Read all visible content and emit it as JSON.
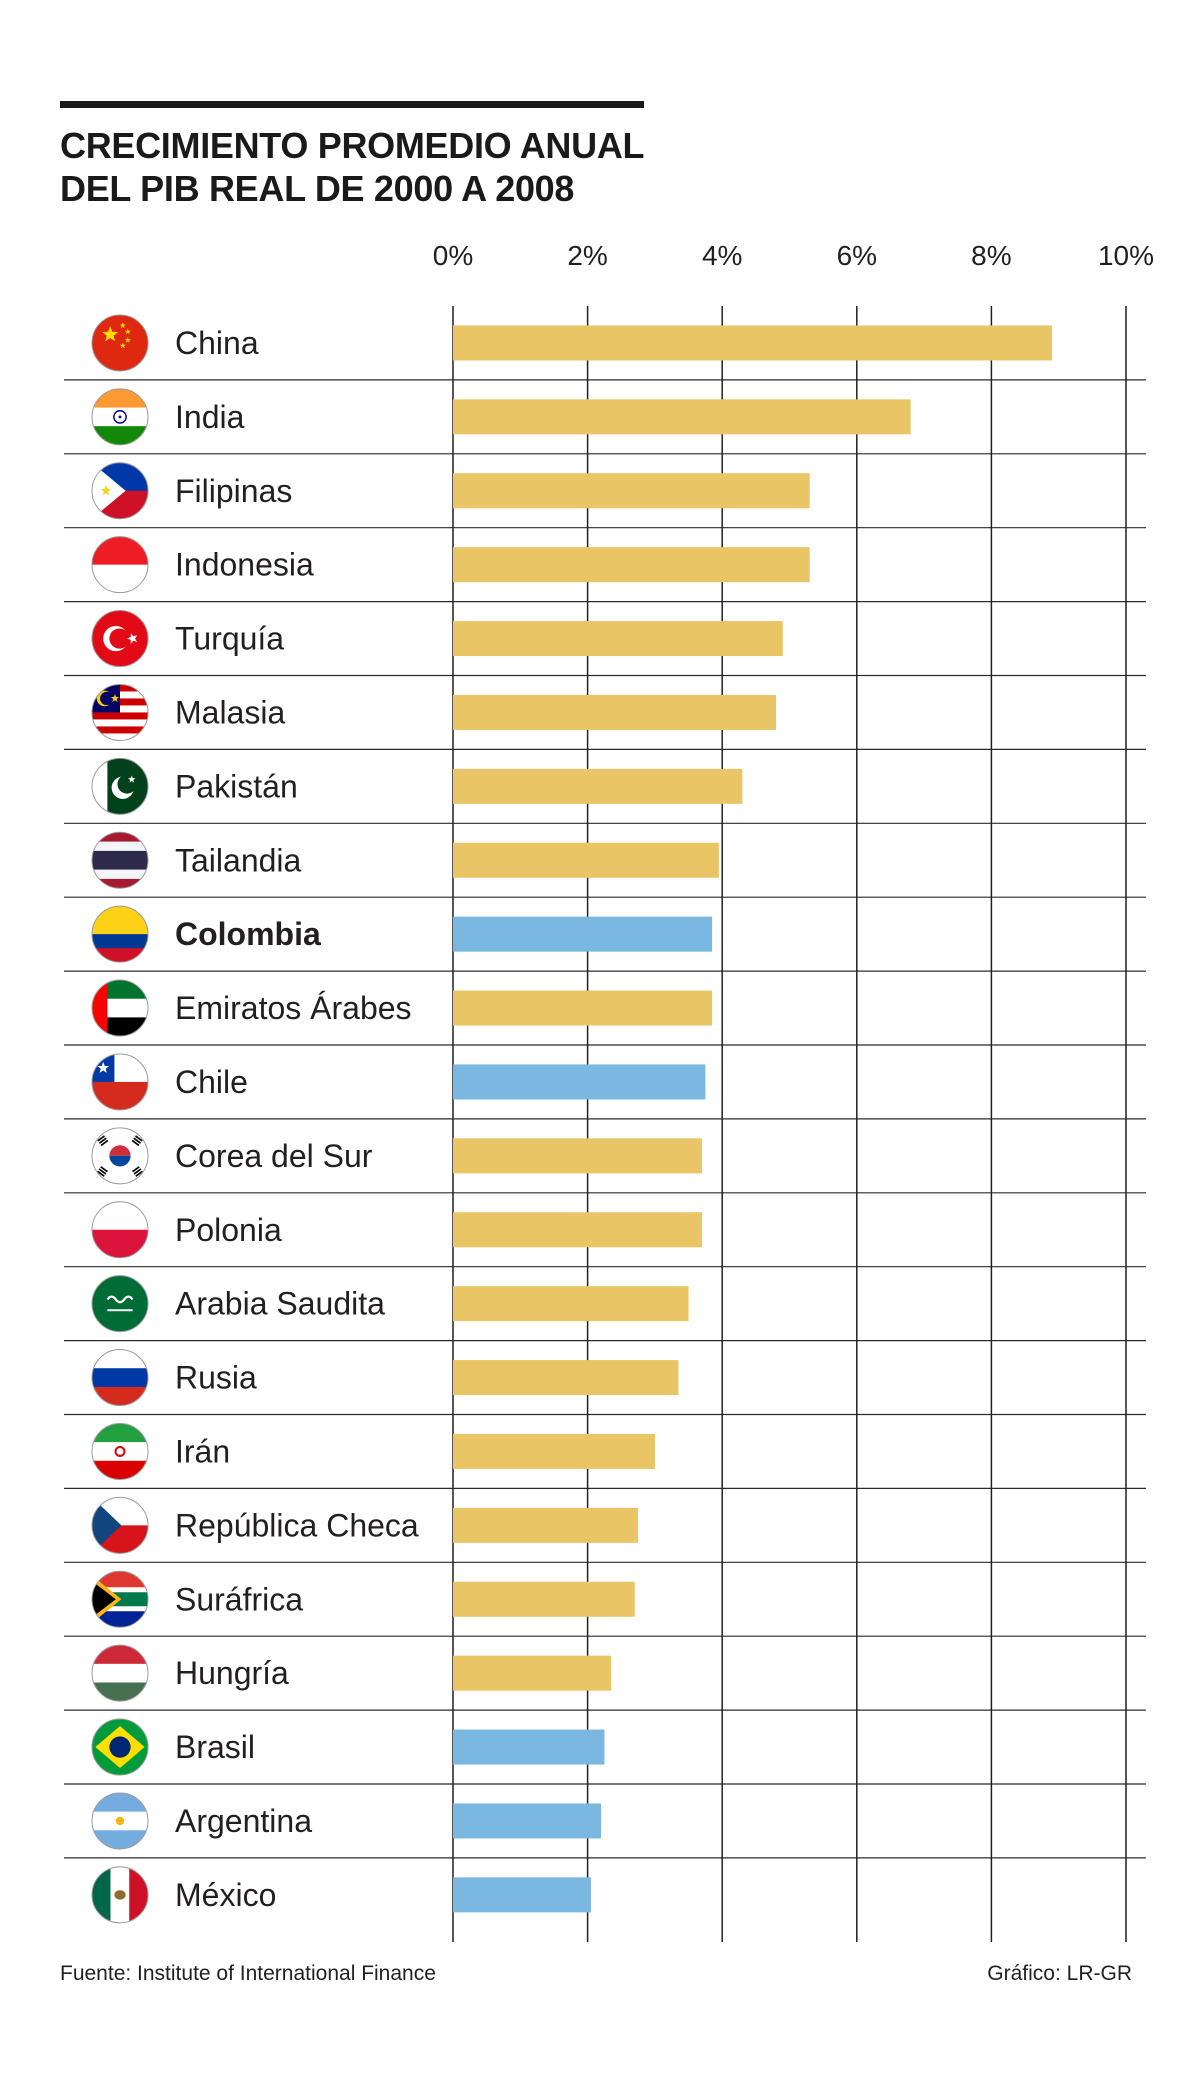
{
  "chart_data": {
    "type": "bar",
    "orientation": "horizontal",
    "title": [
      "CRECIMIENTO PROMEDIO ANUAL",
      "DEL PIB REAL DE 2000 A 2008"
    ],
    "xlim": [
      0,
      10
    ],
    "xticks": [
      "0%",
      "2%",
      "4%",
      "6%",
      "8%",
      "10%"
    ],
    "grid": true,
    "highlight": "Colombia",
    "colors": {
      "default": "#e9c565",
      "latam": "#7ab8e2",
      "grid": "#231f20"
    },
    "categories": [
      "China",
      "India",
      "Filipinas",
      "Indonesia",
      "Turquía",
      "Malasia",
      "Pakistán",
      "Tailandia",
      "Colombia",
      "Emiratos Árabes",
      "Chile",
      "Corea del Sur",
      "Polonia",
      "Arabia Saudita",
      "Rusia",
      "Irán",
      "República Checa",
      "Suráfrica",
      "Hungría",
      "Brasil",
      "Argentina",
      "México"
    ],
    "values": [
      8.9,
      6.8,
      5.3,
      5.3,
      4.9,
      4.8,
      4.3,
      3.95,
      3.85,
      3.85,
      3.75,
      3.7,
      3.7,
      3.5,
      3.35,
      3.0,
      2.75,
      2.7,
      2.35,
      2.25,
      2.2,
      2.05
    ],
    "group": [
      "default",
      "default",
      "default",
      "default",
      "default",
      "default",
      "default",
      "default",
      "latam",
      "default",
      "latam",
      "default",
      "default",
      "default",
      "default",
      "default",
      "default",
      "default",
      "default",
      "latam",
      "latam",
      "latam"
    ],
    "flags": [
      "china-flag-icon",
      "india-flag-icon",
      "philippines-flag-icon",
      "indonesia-flag-icon",
      "turkey-flag-icon",
      "malaysia-flag-icon",
      "pakistan-flag-icon",
      "thailand-flag-icon",
      "colombia-flag-icon",
      "uae-flag-icon",
      "chile-flag-icon",
      "south-korea-flag-icon",
      "poland-flag-icon",
      "saudi-arabia-flag-icon",
      "russia-flag-icon",
      "iran-flag-icon",
      "czech-republic-flag-icon",
      "south-africa-flag-icon",
      "hungary-flag-icon",
      "brazil-flag-icon",
      "argentina-flag-icon",
      "mexico-flag-icon"
    ]
  },
  "footer": {
    "source": "Fuente: Institute of International Finance",
    "credit": "Gráfico: LR-GR"
  }
}
